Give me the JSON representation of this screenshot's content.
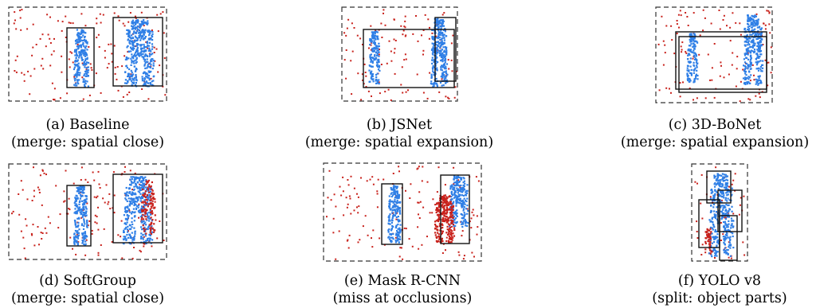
{
  "figure": {
    "panels": [
      {
        "id": "a",
        "title": "(a) Baseline",
        "subtitle": "(merge: spatial close)"
      },
      {
        "id": "b",
        "title": "(b) JSNet",
        "subtitle": "(merge: spatial expansion)"
      },
      {
        "id": "c",
        "title": "(c) 3D-BoNet",
        "subtitle": "(merge: spatial expansion)"
      },
      {
        "id": "d",
        "title": "(d) SoftGroup",
        "subtitle": "(merge: spatial close)"
      },
      {
        "id": "e",
        "title": "(e) Mask R-CNN",
        "subtitle": "(miss at occlusions)"
      },
      {
        "id": "f",
        "title": "(f) YOLO v8",
        "subtitle": "(split: object parts)"
      }
    ],
    "colors": {
      "instance_points": "#2f7fe6",
      "background_points": "#c8211b",
      "box_stroke": "#111111",
      "frame_dash": "#333333"
    }
  }
}
